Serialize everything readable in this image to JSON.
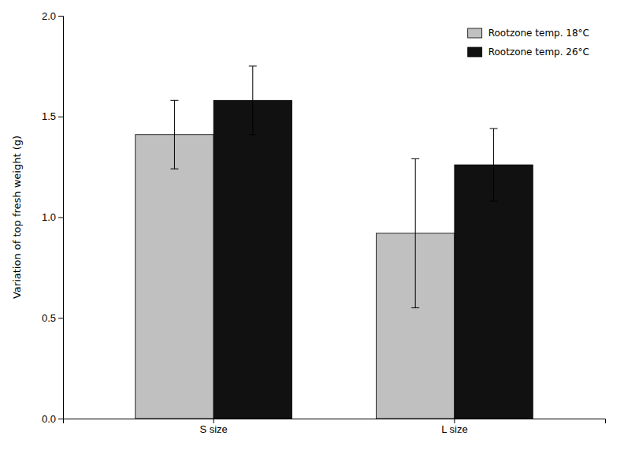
{
  "chart_data": {
    "type": "bar",
    "categories": [
      "S size",
      "L size"
    ],
    "series": [
      {
        "name": "Rootzone temp. 18°C",
        "color": "#c0c0c0",
        "values": [
          1.41,
          0.92
        ],
        "errors": [
          0.17,
          0.37
        ]
      },
      {
        "name": "Rootzone temp. 26°C",
        "color": "#111111",
        "values": [
          1.58,
          1.26
        ],
        "errors": [
          0.17,
          0.18
        ]
      }
    ],
    "ylabel": "Variation of top fresh weight (g)",
    "ylim": [
      0.0,
      2.0
    ],
    "yticks": [
      {
        "value": 0.0,
        "label": "0.0"
      },
      0.5,
      {
        "value": 1.0,
        "label": "1.0"
      },
      1.5,
      {
        "value": 2.0,
        "label": "2.0"
      }
    ],
    "legend": "upper right",
    "grid": false
  }
}
